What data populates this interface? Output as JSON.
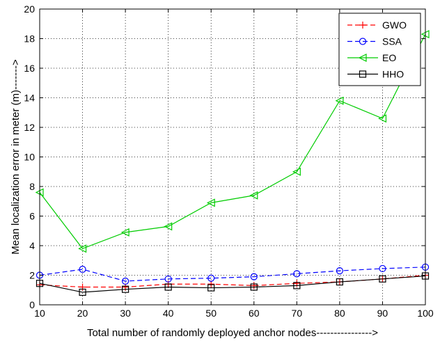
{
  "chart_data": {
    "type": "line",
    "title": "",
    "xlabel": "Total number of randomly deployed anchor nodes---------------->",
    "ylabel": "Mean localization error in meter (m)------->",
    "xlim": [
      10,
      100
    ],
    "ylim": [
      0,
      20
    ],
    "x": [
      10,
      20,
      30,
      40,
      50,
      60,
      70,
      80,
      90,
      100
    ],
    "xticks": [
      "10",
      "20",
      "30",
      "40",
      "50",
      "60",
      "70",
      "80",
      "90",
      "100"
    ],
    "yticks": [
      "0",
      "2",
      "4",
      "6",
      "8",
      "10",
      "12",
      "14",
      "16",
      "18",
      "20"
    ],
    "grid": true,
    "legend_position": "top-right",
    "series": [
      {
        "name": "GWO",
        "color": "#ff0000",
        "dash": "dashed",
        "marker": "plus",
        "values": [
          1.35,
          1.2,
          1.2,
          1.4,
          1.4,
          1.3,
          1.45,
          1.55,
          1.75,
          2.0
        ]
      },
      {
        "name": "SSA",
        "color": "#0000ff",
        "dash": "dashed",
        "marker": "circle",
        "values": [
          2.0,
          2.4,
          1.6,
          1.75,
          1.8,
          1.9,
          2.1,
          2.3,
          2.45,
          2.55
        ]
      },
      {
        "name": "EO",
        "color": "#00cc00",
        "dash": "solid",
        "marker": "triangle-left",
        "values": [
          7.6,
          3.8,
          4.9,
          5.3,
          6.9,
          7.4,
          9.0,
          13.8,
          12.6,
          18.3
        ]
      },
      {
        "name": "HHO",
        "color": "#000000",
        "dash": "solid",
        "marker": "square",
        "values": [
          1.45,
          0.85,
          1.05,
          1.2,
          1.15,
          1.2,
          1.3,
          1.55,
          1.75,
          1.95
        ]
      }
    ]
  }
}
